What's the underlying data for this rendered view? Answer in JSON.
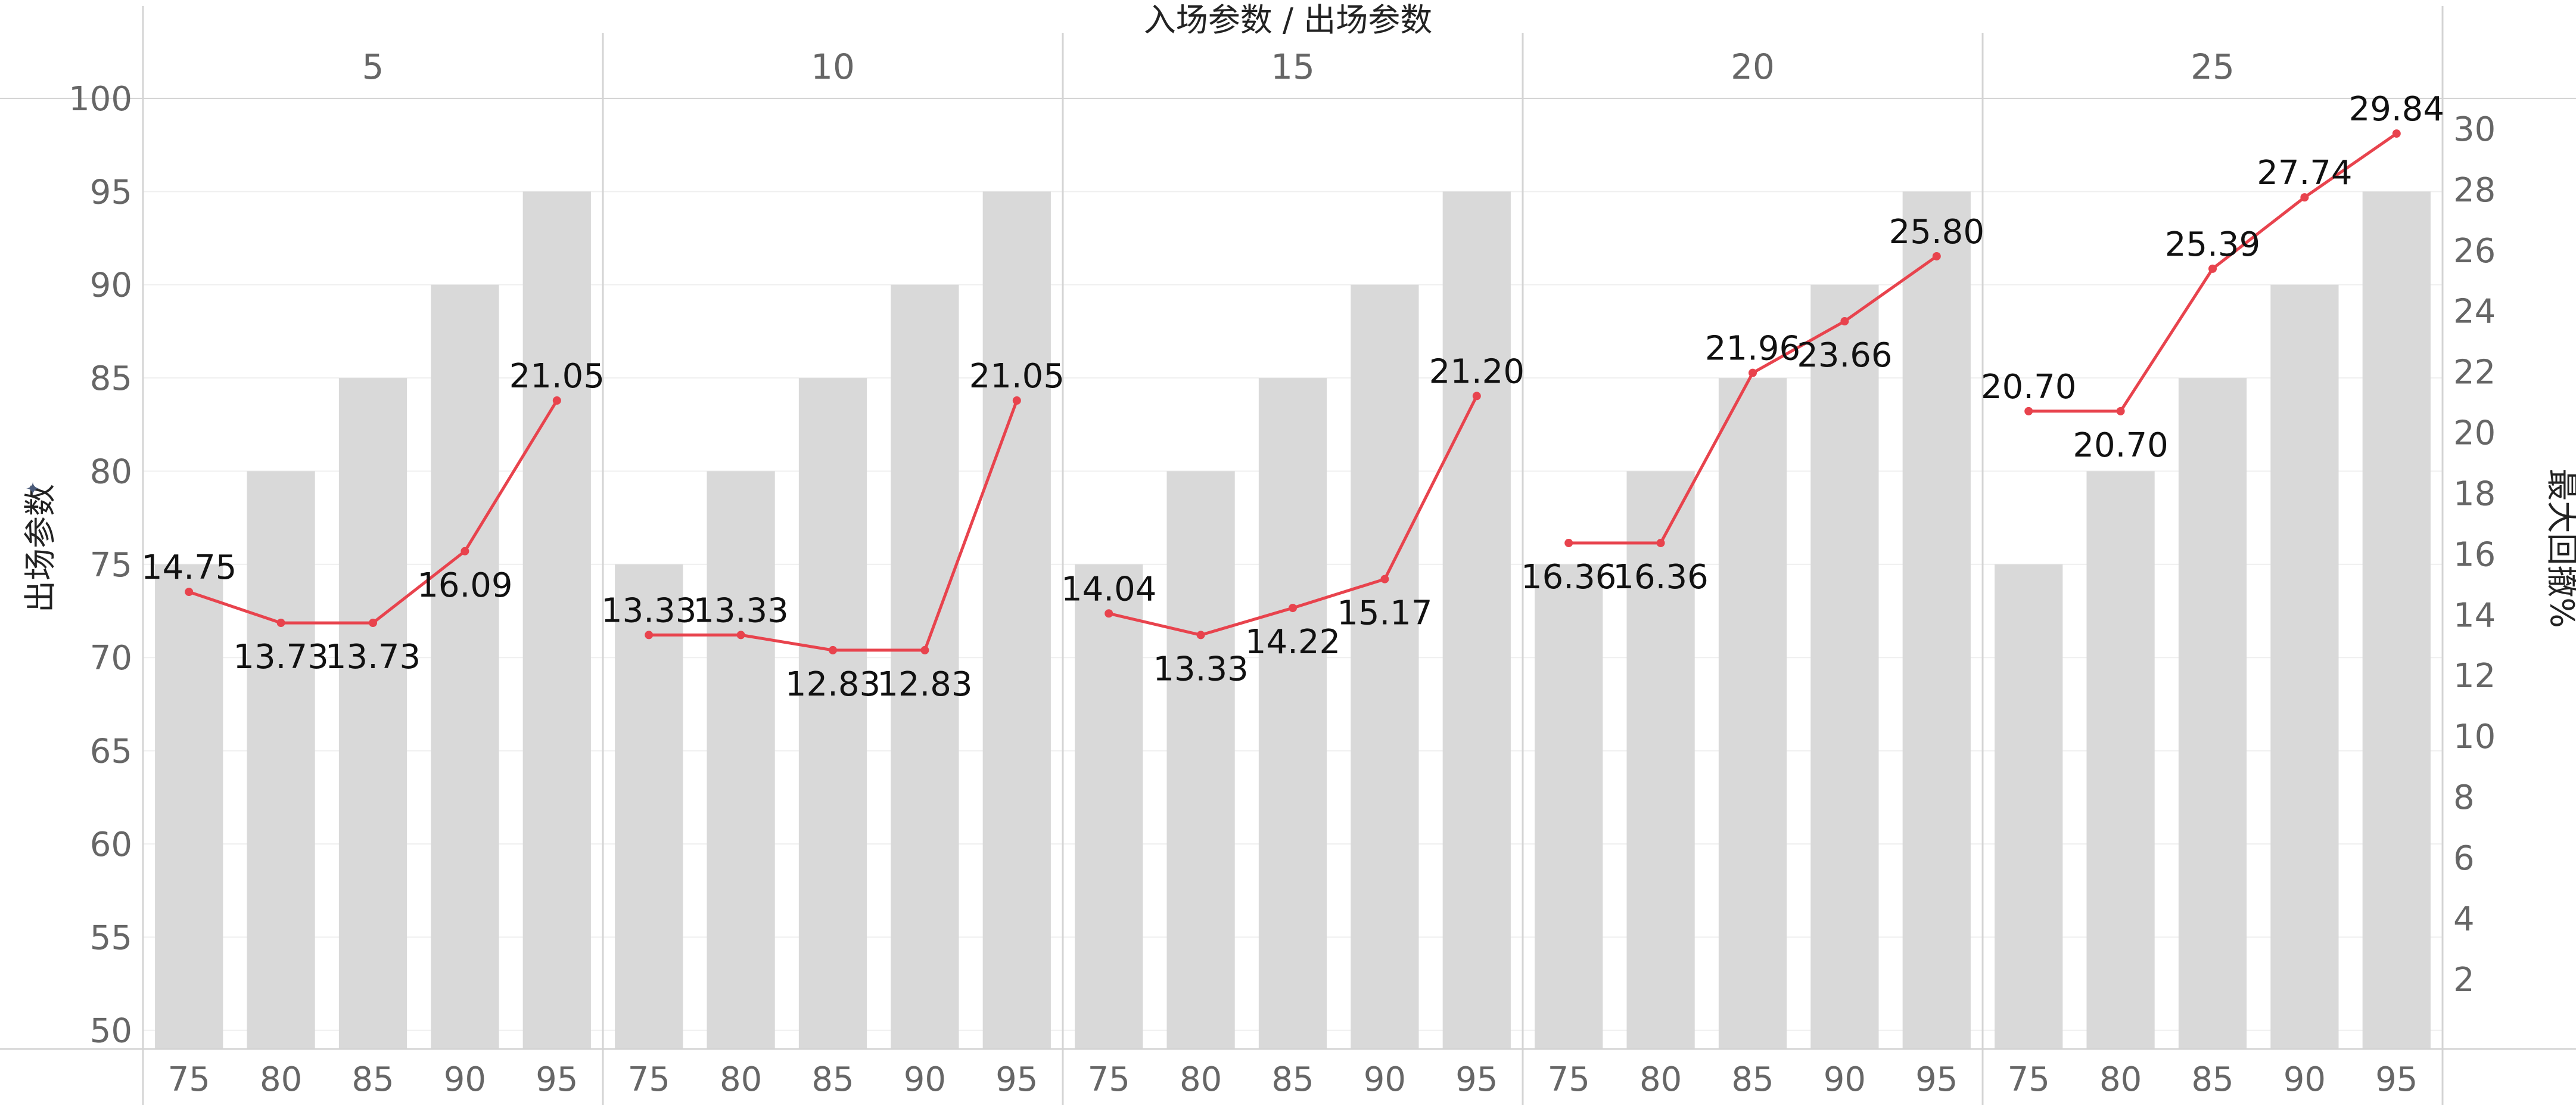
{
  "chart_data": {
    "type": "bar+line",
    "title": "入场参数 / 出场参数",
    "panel_labels": [
      "5",
      "10",
      "15",
      "20",
      "25"
    ],
    "categories": [
      "75",
      "80",
      "85",
      "90",
      "95"
    ],
    "y_left": {
      "label": "出场参数",
      "ticks": [
        "50",
        "55",
        "60",
        "65",
        "70",
        "75",
        "80",
        "85",
        "90",
        "95",
        "100"
      ],
      "range": [
        49,
        100
      ]
    },
    "y_right": {
      "label": "最大回撤%",
      "ticks": [
        "2",
        "4",
        "6",
        "8",
        "10",
        "12",
        "14",
        "16",
        "18",
        "20",
        "22",
        "24",
        "26",
        "28",
        "30"
      ],
      "range": [
        -0.3,
        31
      ]
    },
    "bars": {
      "name": "出场参数",
      "color": "#d9d9d9",
      "values": [
        75,
        80,
        85,
        90,
        95
      ]
    },
    "line": {
      "name": "最大回撤%",
      "color": "#e8434d",
      "values": [
        [
          14.75,
          13.73,
          13.73,
          16.09,
          21.05
        ],
        [
          13.33,
          13.33,
          12.83,
          12.83,
          21.05
        ],
        [
          14.04,
          13.33,
          14.22,
          15.17,
          21.2
        ],
        [
          16.36,
          16.36,
          21.96,
          23.66,
          25.8
        ],
        [
          20.7,
          20.7,
          25.39,
          27.74,
          29.84
        ]
      ],
      "labels": [
        [
          "14.75",
          "13.73",
          "13.73",
          "16.09",
          "21.05"
        ],
        [
          "13.33",
          "13.33",
          "12.83",
          "12.83",
          "21.05"
        ],
        [
          "14.04",
          "13.33",
          "14.22",
          "15.17",
          "21.20"
        ],
        [
          "16.36",
          "16.36",
          "21.96",
          "23.66",
          "25.80"
        ],
        [
          "20.70",
          "20.70",
          "25.39",
          "27.74",
          "29.84"
        ]
      ],
      "label_position": [
        [
          "above",
          "below",
          "below",
          "below",
          "above"
        ],
        [
          "above",
          "above",
          "below",
          "below",
          "above"
        ],
        [
          "above",
          "below",
          "below",
          "below",
          "above"
        ],
        [
          "below",
          "below",
          "above",
          "below",
          "above"
        ],
        [
          "above",
          "below",
          "above",
          "above",
          "above"
        ]
      ]
    },
    "grid": true
  },
  "colors": {
    "bar": "#d9d9d9",
    "line": "#e8434d",
    "axis_text": "#666666",
    "label_text": "#111111",
    "divider": "#d4d4d4",
    "gridline": "#efefef"
  }
}
